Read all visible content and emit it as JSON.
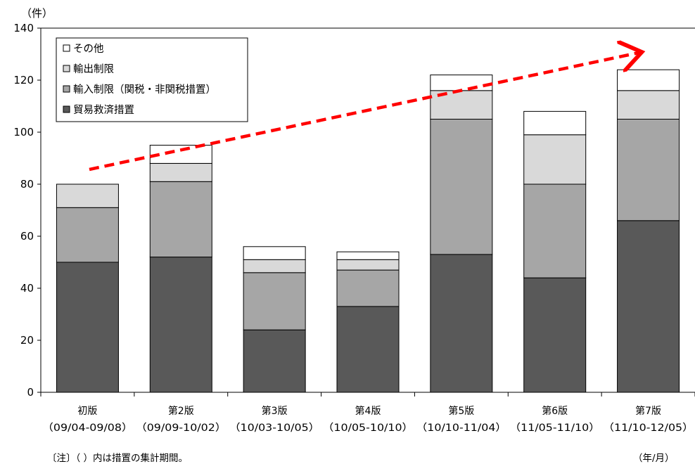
{
  "chart_data": {
    "type": "bar",
    "stacked": true,
    "y_unit": "（件）",
    "ylim": [
      0,
      140
    ],
    "y_ticks": [
      0,
      20,
      40,
      60,
      80,
      100,
      120,
      140
    ],
    "grid": false,
    "legend_position": "top-left",
    "categories": [
      "初版",
      "第2版",
      "第3版",
      "第4版",
      "第5版",
      "第6版",
      "第7版"
    ],
    "periods": [
      "（09/04-09/08）",
      "（09/09-10/02）",
      "（10/03-10/05）",
      "（10/05-10/10）",
      "（10/10-11/04）",
      "（11/05-11/10）",
      "（11/10-12/05）"
    ],
    "series": [
      {
        "name": "貿易救済措置",
        "color": "#595959",
        "values": [
          50,
          52,
          24,
          33,
          53,
          44,
          66
        ]
      },
      {
        "name": "輸入制限（関税・非関税措置）",
        "color": "#a6a6a6",
        "values": [
          21,
          29,
          22,
          14,
          52,
          36,
          39
        ]
      },
      {
        "name": "輸出制限",
        "color": "#d9d9d9",
        "values": [
          9,
          7,
          5,
          4,
          11,
          19,
          11
        ]
      },
      {
        "name": "その他",
        "color": "#ffffff",
        "values": [
          0,
          7,
          5,
          3,
          6,
          9,
          8
        ]
      }
    ],
    "trend_arrow_color": "#ff0000"
  },
  "note": "〔注〕（ ）内は措置の集計期間。",
  "x_unit": "（年/月）"
}
